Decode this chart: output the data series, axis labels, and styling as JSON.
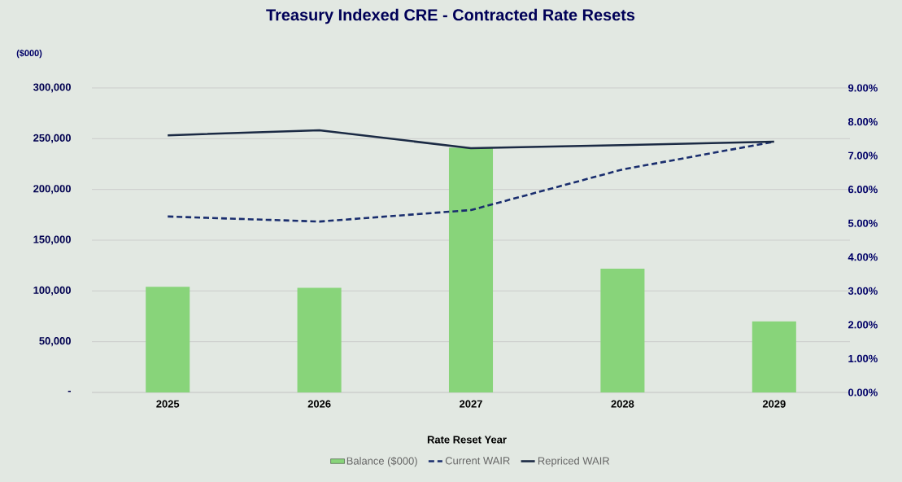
{
  "chart_data": {
    "type": "bar",
    "title": "Treasury Indexed CRE - Contracted Rate Resets",
    "xlabel": "Rate Reset Year",
    "ylabel": "($000)",
    "categories": [
      "2025",
      "2026",
      "2027",
      "2028",
      "2029"
    ],
    "series": [
      {
        "name": "Balance ($000)",
        "color": "#88d47a",
        "values": [
          104000,
          103000,
          241000,
          122000,
          70000
        ]
      },
      {
        "name": "Current WAIR",
        "type": "line",
        "axis": "y2",
        "line_style": "dashed",
        "color": "#1a2e6e",
        "values": [
          5.2,
          5.05,
          5.39,
          6.59,
          7.41
        ]
      },
      {
        "name": "Repriced WAIR",
        "type": "line",
        "axis": "y2",
        "line_style": "solid",
        "color": "#1b2a44",
        "values": [
          7.6,
          7.75,
          7.22,
          7.31,
          7.41
        ]
      }
    ],
    "ylim": [
      0,
      300000
    ],
    "yticks": [
      {
        "value": 0,
        "label": "-"
      },
      {
        "value": 50000,
        "label": "50,000"
      },
      {
        "value": 100000,
        "label": "100,000"
      },
      {
        "value": 150000,
        "label": "150,000"
      },
      {
        "value": 200000,
        "label": "200,000"
      },
      {
        "value": 250000,
        "label": "250,000"
      },
      {
        "value": 300000,
        "label": "300,000"
      }
    ],
    "y2lim": [
      0,
      9
    ],
    "y2ticks": [
      {
        "value": 0,
        "label": "0.00%"
      },
      {
        "value": 1,
        "label": "1.00%"
      },
      {
        "value": 2,
        "label": "2.00%"
      },
      {
        "value": 3,
        "label": "3.00%"
      },
      {
        "value": 4,
        "label": "4.00%"
      },
      {
        "value": 5,
        "label": "5.00%"
      },
      {
        "value": 6,
        "label": "6.00%"
      },
      {
        "value": 7,
        "label": "7.00%"
      },
      {
        "value": 8,
        "label": "8.00%"
      },
      {
        "value": 9,
        "label": "9.00%"
      }
    ],
    "grid": "y",
    "legend": "bottom",
    "marker": "none"
  }
}
